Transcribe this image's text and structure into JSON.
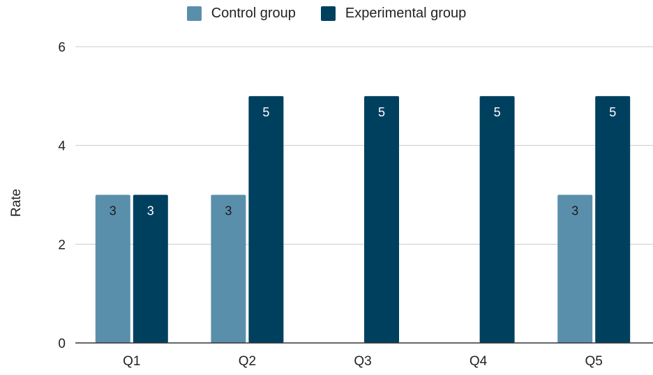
{
  "chart_data": {
    "type": "bar",
    "categories": [
      "Q1",
      "Q2",
      "Q3",
      "Q4",
      "Q5"
    ],
    "series": [
      {
        "name": "Control group",
        "color": "#5a8fab",
        "values": [
          3,
          3,
          0,
          0,
          3
        ]
      },
      {
        "name": "Experimental group",
        "color": "#00405f",
        "values": [
          3,
          5,
          5,
          5,
          5
        ]
      }
    ],
    "data_labels": {
      "Control group": [
        "3",
        "3",
        "",
        "",
        "3"
      ],
      "Experimental group": [
        "3",
        "5",
        "5",
        "5",
        "5"
      ]
    },
    "ylabel": "Rate",
    "xlabel": "",
    "ylim": [
      0,
      6
    ],
    "yticks": [
      "0",
      "2",
      "4",
      "6"
    ],
    "legend_position": "top-center",
    "grid": true
  }
}
